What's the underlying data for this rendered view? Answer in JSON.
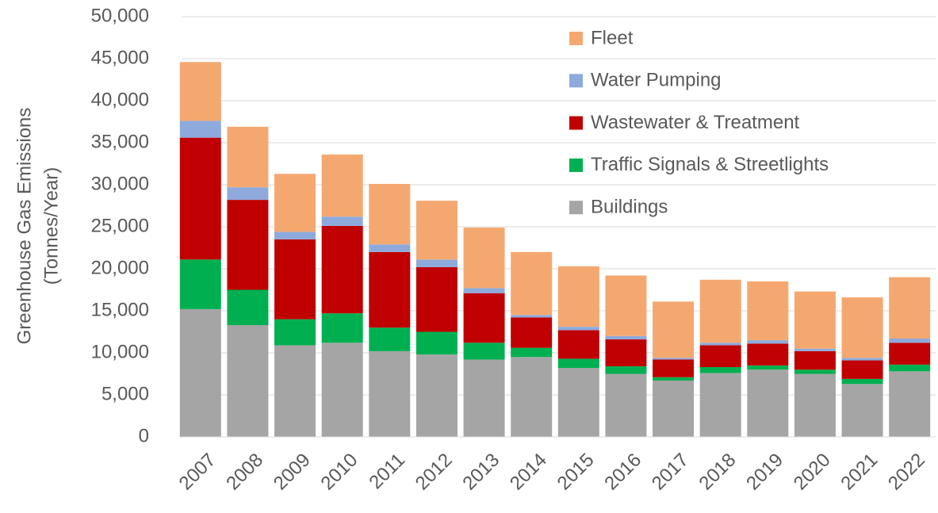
{
  "chart_data": {
    "type": "stacked_bar",
    "y_label": [
      "Greenhouse Gas Emissions",
      "(Tonnes/Year)"
    ],
    "categories": [
      "2007",
      "2008",
      "2009",
      "2010",
      "2011",
      "2012",
      "2013",
      "2014",
      "2015",
      "2016",
      "2017",
      "2018",
      "2019",
      "2020",
      "2021",
      "2022"
    ],
    "series": [
      {
        "name": "Buildings",
        "color": "#a5a5a5",
        "values": [
          15200,
          13300,
          10900,
          11200,
          10200,
          9800,
          9200,
          9500,
          8200,
          7500,
          6700,
          7600,
          8000,
          7500,
          6300,
          7800
        ]
      },
      {
        "name": "Traffic Signals & Streetlights",
        "color": "#00b050",
        "values": [
          5900,
          4200,
          3100,
          3500,
          2800,
          2700,
          2000,
          1100,
          1100,
          900,
          400,
          700,
          500,
          500,
          600,
          800
        ]
      },
      {
        "name": "Wastewater & Treatment",
        "color": "#c00000",
        "values": [
          14500,
          10700,
          9500,
          10400,
          9000,
          7700,
          5900,
          3600,
          3400,
          3200,
          2100,
          2600,
          2600,
          2200,
          2200,
          2600
        ]
      },
      {
        "name": "Water Pumping",
        "color": "#8eaadc",
        "values": [
          2000,
          1500,
          900,
          1100,
          900,
          900,
          600,
          300,
          400,
          400,
          200,
          300,
          400,
          300,
          300,
          500
        ]
      },
      {
        "name": "Fleet",
        "color": "#f4a870",
        "values": [
          7000,
          7200,
          6900,
          7400,
          7200,
          7000,
          7200,
          7500,
          7200,
          7200,
          6700,
          7500,
          7000,
          6800,
          7200,
          7300
        ]
      }
    ],
    "ylim": [
      0,
      50000
    ],
    "yticks": [
      0,
      {
        "value": 5000,
        "label": "5,000"
      },
      {
        "value": 10000,
        "label": "10,000"
      },
      {
        "value": 15000,
        "label": "15,000"
      },
      {
        "value": 20000,
        "label": "20,000"
      },
      {
        "value": 25000,
        "label": "25,000"
      },
      {
        "value": 30000,
        "label": "30,000"
      },
      {
        "value": 35000,
        "label": "35,000"
      },
      {
        "value": 40000,
        "label": "40,000"
      },
      {
        "value": 45000,
        "label": "45,000"
      },
      {
        "value": 50000,
        "label": "50,000"
      }
    ],
    "grid": true,
    "legend": "upper right"
  }
}
